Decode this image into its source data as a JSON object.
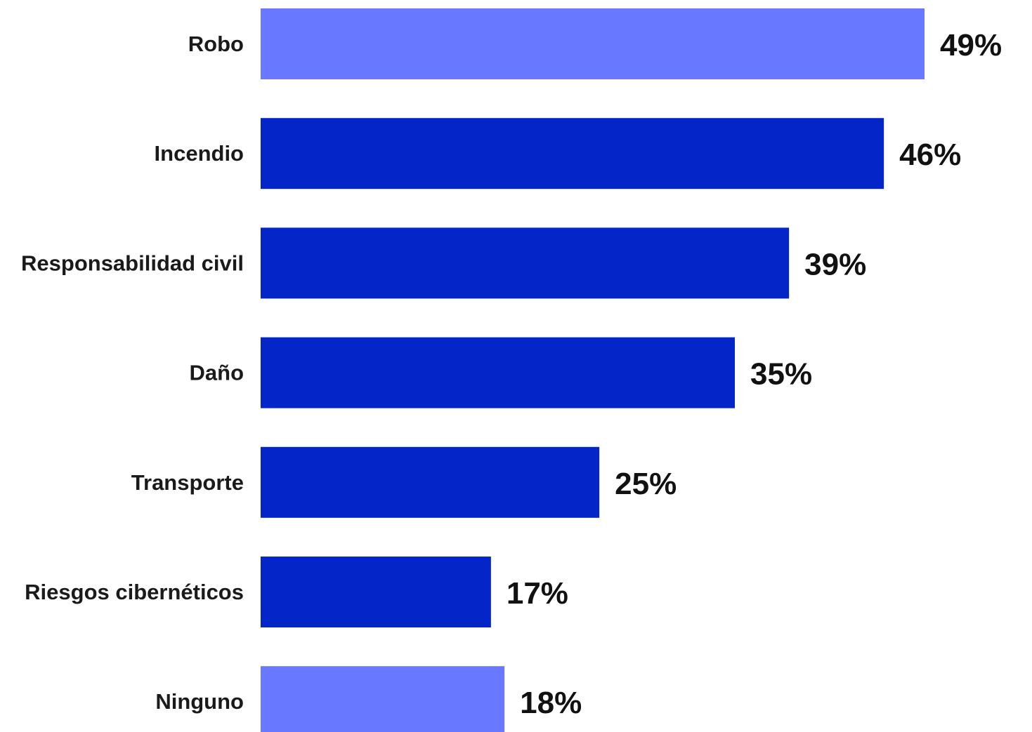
{
  "chart_data": {
    "type": "bar",
    "orientation": "horizontal",
    "categories": [
      "Robo",
      "Incendio",
      "Responsabilidad civil",
      "Daño",
      "Transporte",
      "Riesgos cibernéticos",
      "Ninguno"
    ],
    "values": [
      49,
      46,
      39,
      35,
      25,
      17,
      18
    ],
    "value_labels": [
      "49%",
      "46%",
      "39%",
      "35%",
      "25%",
      "17%",
      "18%"
    ],
    "bar_colors": [
      "#6878ff",
      "#0426c9",
      "#0426c9",
      "#0426c9",
      "#0426c9",
      "#0426c9",
      "#6878ff"
    ],
    "title": "",
    "xlabel": "",
    "ylabel": "",
    "unit": "%",
    "grid": false,
    "legend": "none"
  }
}
